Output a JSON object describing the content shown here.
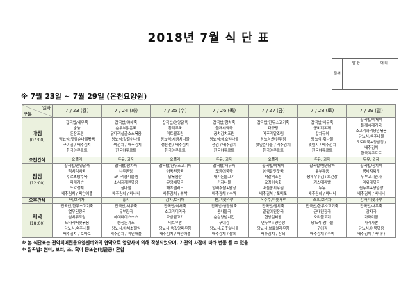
{
  "title": "2018년 7월 식 단 표",
  "approval": {
    "side": "결재",
    "cols": [
      "담 당",
      "대 리"
    ]
  },
  "subtitle": "※ 7월 23일 ~ 7월 29일 (온천요양원)",
  "table": {
    "corner_top": "일자",
    "corner_bottom": "구분",
    "days": [
      "7 / 23 (월)",
      "7 / 24 (화)",
      "7 / 25 (수)",
      "7 / 26 (목)",
      "7 / 27 (금)",
      "7 / 28 (토)",
      "7 / 29 (일)"
    ],
    "rows": [
      {
        "label": "아침",
        "time": "(07:00)",
        "type": "meal",
        "cells": [
          [
            "잡곡밥/새우죽",
            "숭늉",
            "돈장조림",
            "당뇨식:깻잎순나물볶음",
            "구이김 / 배추김치",
            "한국야쿠르트"
          ],
          [
            "잡곡밥/야채죽",
            "순두부맑은국",
            "닭다리살굴소스볶음",
            "당뇨식:얼갈이나물",
            "나박김치 / 배추김치",
            "한국야쿠르트"
          ],
          [
            "잡곡밥/영양닭죽",
            "황태무국",
            "미트볼조림",
            "당뇨식:시금치나물",
            "생선전 / 배추김치",
            "한국야쿠르트"
          ],
          [
            "잡곡밥/참치죽",
            "들깨시락국",
            "꽁치김치조림",
            "당뇨식:애호박나물",
            "생김 / 배추김치",
            "한국야쿠르트"
          ],
          [
            "잡곡밥/한우소고기죽",
            "대구탕",
            "메추리알조림",
            "당뇨식:명란무침",
            "깻잎순나물 / 배추김치",
            "한국야쿠르트"
          ],
          [
            "잡곡밥/새우죽",
            "콩비지찌개",
            "갈치구이",
            "당뇨식:취나물",
            "깻잎지 / 배추김치",
            "한국야쿠르트"
          ],
          [
            "잡곡밥/야채죽",
            "들깨시래기국",
            "소고기꽈리양념볶음",
            "당뇨식:숙주나물",
            "도토리묵+양념장 /",
            "배추김치",
            "한국야쿠르트"
          ]
        ]
      },
      {
        "label": "오전간식",
        "type": "snack",
        "cells": [
          [
            "요플레"
          ],
          [
            "두유, 과자"
          ],
          [
            "요플레"
          ],
          [
            "두유, 과자"
          ],
          [
            "요플레"
          ],
          [
            "두유, 과자"
          ],
          [
            "두유, 과자"
          ]
        ]
      },
      {
        "label": "점심",
        "time": "(12:00)",
        "type": "meal",
        "cells": [
          [
            "잡곡밥/영양닭죽",
            "참치김치국",
            "후르츠탕수육",
            "파래자반",
            "노각생채",
            "배추김치 / 파인애플"
          ],
          [
            "잡곡밥/참치죽",
            "나주곰탕",
            "코다리콩나물찜",
            "소세지계란볶음",
            "참나물",
            "배추김치 / 바나나"
          ],
          [
            "잡곡밥/한우소고기죽",
            "아욱된장국",
            "닭볶음탕",
            "우엉채볶음",
            "해초샐러드",
            "배추김치 / 수박"
          ],
          [
            "잡곡밥/새우죽",
            "모듬어묵국",
            "대파돈불고기",
            "가지나물",
            "양배추쌈+쌈장",
            "배추김치 / 수박"
          ],
          [
            "잡곡밥/야채죽",
            "삼색알만둣국",
            "떡갈비조림",
            "오징어숙회",
            "마늘쫑지무침",
            "배추김치 / 토마토"
          ],
          [
            "잡곡밥/영양닭죽",
            "유부우동",
            "왕새우튀김+초간장",
            "카스테라빵",
            "두유",
            "배추김치 / 바나나"
          ],
          [
            "잡곡밥/참치죽",
            "콩비지찌개",
            "두부고기완자",
            "머위대볶음",
            "찐두부+양념장",
            "배추김치 / 바나나"
          ]
        ]
      },
      {
        "label": "오후간식",
        "type": "snack",
        "cells": [
          [
            "떡,보리차"
          ],
          [
            "홍시"
          ],
          [
            "감자,보리차"
          ],
          [
            "빵,미숫가루"
          ],
          [
            "옥수수,미숫가루"
          ],
          [
            "스프,보리차"
          ],
          [
            "감자,미숫가루"
          ]
        ]
      },
      {
        "label": "저녁",
        "time": "(18:00)",
        "type": "meal",
        "cells": [
          [
            "잡곡밥/한우소고기죽",
            "열무된장국",
            "삼치무조림",
            "느타리버섯볶음",
            "당뇨식:숙주나물",
            "배추김치 / 토마토"
          ],
          [
            "잡곡밥/새우죽",
            "유부장국",
            "하이라이스소스",
            "등심돈가스",
            "당뇨식:야채초절임",
            "배추김치 / 파인애플"
          ],
          [
            "잡곡밥/야채죽",
            "소고기미역국",
            "오삼불고기",
            "비트무쌈",
            "당뇨식:쑥갓양파무침",
            "배추김치 / 파인애플"
          ],
          [
            "잡곡밥/영양닭죽",
            "콩나물국",
            "순살양념치킨",
            "구이김",
            "당뇨식:고춧잎나물",
            "배추김치 / 참외"
          ],
          [
            "잡곡밥/참치죽",
            "얼갈이된장국",
            "한방갈비찜",
            "연두부+양념장",
            "당뇨식:브로컬리무침",
            "배추김치 / 참외"
          ],
          [
            "잡곡밥/한우소고기죽",
            "근대된장국",
            "오리불고기",
            "당뇨식:참나물",
            "구이김",
            "배추김치 / 수박"
          ],
          [
            "잡곡밥/새우죽",
            "감자국",
            "가자미찜",
            "파래자반",
            "당뇨식:어묵볶음",
            "배추김치 / 바나나"
          ]
        ]
      }
    ]
  },
  "notes": [
    "※ 본 식단표는 관악치매전문요양센터와의 협약으로 영양사에 의해 작성되었으며, 기관의 사정에 따라 변동 될 수 있음",
    "※ 잡곡밥: 현미, 보리, 조, 흑미 중또는(넝쿨콩) 혼합"
  ],
  "colors": {
    "header_bg": "#ebf1de",
    "border": "#888888"
  }
}
